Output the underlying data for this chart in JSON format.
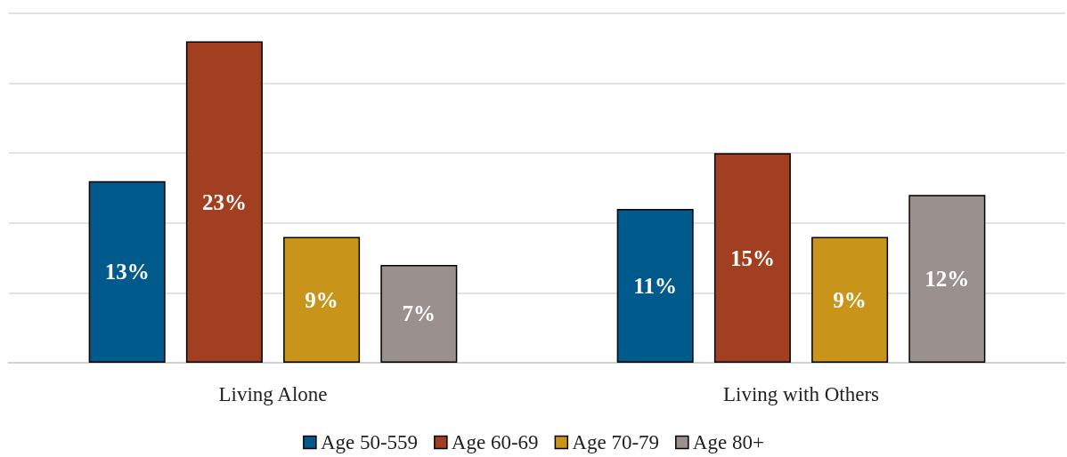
{
  "chart_data": {
    "type": "bar",
    "categories": [
      "Living Alone",
      "Living with Others"
    ],
    "series": [
      {
        "name": "Age 50-559",
        "color": "#005a8c",
        "values": [
          13,
          11
        ],
        "value_labels": [
          "13%",
          "11%"
        ]
      },
      {
        "name": "Age 60-69",
        "color": "#a23f20",
        "values": [
          23,
          15
        ],
        "value_labels": [
          "23%",
          "15%"
        ]
      },
      {
        "name": "Age 70-79",
        "color": "#c8941a",
        "values": [
          9,
          9
        ],
        "value_labels": [
          "9%",
          "9%"
        ]
      },
      {
        "name": "Age 80+",
        "color": "#9a918e",
        "values": [
          7,
          12
        ],
        "value_labels": [
          "7%",
          "12%"
        ]
      }
    ],
    "ylim": [
      0,
      25
    ],
    "grid": "y",
    "legend": "bottom",
    "tick_labels": "x"
  }
}
